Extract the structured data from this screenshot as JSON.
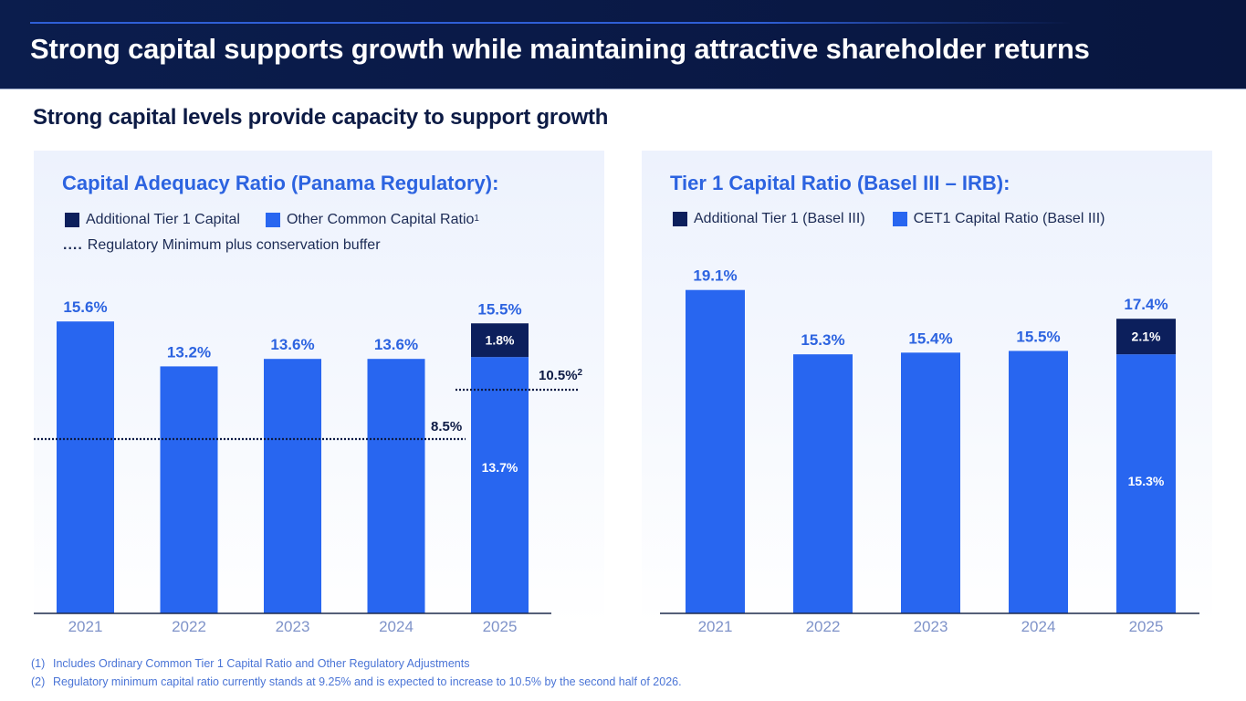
{
  "header": {
    "title": "Strong capital supports growth while maintaining attractive shareholder returns"
  },
  "subtitle": "Strong capital levels provide capacity to support growth",
  "colors": {
    "header_bg": "#0b1d4d",
    "accent_blue": "#2866f0",
    "dark_navy": "#0c1f5c",
    "title_blue": "#2c63e0",
    "axis_label": "#7f93c9"
  },
  "legend_left": {
    "item1": "Additional Tier 1 Capital",
    "item2": "Other Common Capital Ratio",
    "item2_sup": "1",
    "dots": "....",
    "item3": "Regulatory Minimum plus conservation buffer"
  },
  "legend_right": {
    "item1": "Additional Tier 1 (Basel III)",
    "item2": "CET1 Capital Ratio (Basel III)"
  },
  "chart_data": [
    {
      "type": "bar",
      "stacked": true,
      "title": "Capital Adequacy Ratio (Panama Regulatory):",
      "categories": [
        "2021",
        "2022",
        "2023",
        "2024",
        "2025"
      ],
      "series": [
        {
          "name": "Other Common Capital Ratio",
          "values": [
            15.6,
            13.2,
            13.6,
            13.6,
            13.7
          ],
          "color": "#2866f0"
        },
        {
          "name": "Additional Tier 1 Capital",
          "values": [
            0,
            0,
            0,
            0,
            1.8
          ],
          "color": "#0c1f5c"
        }
      ],
      "totals": [
        "15.6%",
        "13.2%",
        "13.6%",
        "13.6%",
        "15.5%"
      ],
      "segment_labels": [
        {
          "category": "2025",
          "series": "Other Common Capital Ratio",
          "label": "13.7%"
        },
        {
          "category": "2025",
          "series": "Additional Tier 1 Capital",
          "label": "1.8%"
        }
      ],
      "reference_lines": [
        {
          "name": "Regulatory Minimum plus conservation buffer",
          "value": 8.5,
          "label": "8.5%",
          "span": [
            "2021",
            "2024"
          ],
          "style": "dotted"
        },
        {
          "name": "Regulatory Minimum plus conservation buffer (2026)",
          "value": 10.5,
          "label": "10.5%",
          "label_sup": "2",
          "span": [
            "2025"
          ],
          "style": "dotted"
        }
      ],
      "xlabel": "",
      "ylabel": "",
      "grid": false
    },
    {
      "type": "bar",
      "stacked": true,
      "title": "Tier 1 Capital Ratio (Basel III – IRB):",
      "categories": [
        "2021",
        "2022",
        "2023",
        "2024",
        "2025"
      ],
      "series": [
        {
          "name": "CET1 Capital Ratio (Basel III)",
          "values": [
            19.1,
            15.3,
            15.4,
            15.5,
            15.3
          ],
          "color": "#2866f0"
        },
        {
          "name": "Additional Tier 1 (Basel III)",
          "values": [
            0,
            0,
            0,
            0,
            2.1
          ],
          "color": "#0c1f5c"
        }
      ],
      "totals": [
        "19.1%",
        "15.3%",
        "15.4%",
        "15.5%",
        "17.4%"
      ],
      "segment_labels": [
        {
          "category": "2025",
          "series": "CET1 Capital Ratio (Basel III)",
          "label": "15.3%"
        },
        {
          "category": "2025",
          "series": "Additional Tier 1 (Basel III)",
          "label": "2.1%"
        }
      ],
      "xlabel": "",
      "ylabel": "",
      "grid": false
    }
  ],
  "footnotes": [
    {
      "num": "(1)",
      "text": "Includes Ordinary Common Tier 1 Capital Ratio and Other Regulatory Adjustments"
    },
    {
      "num": "(2)",
      "text": "Regulatory minimum capital ratio currently stands at 9.25% and is expected to increase to 10.5% by the second half of 2026."
    }
  ]
}
